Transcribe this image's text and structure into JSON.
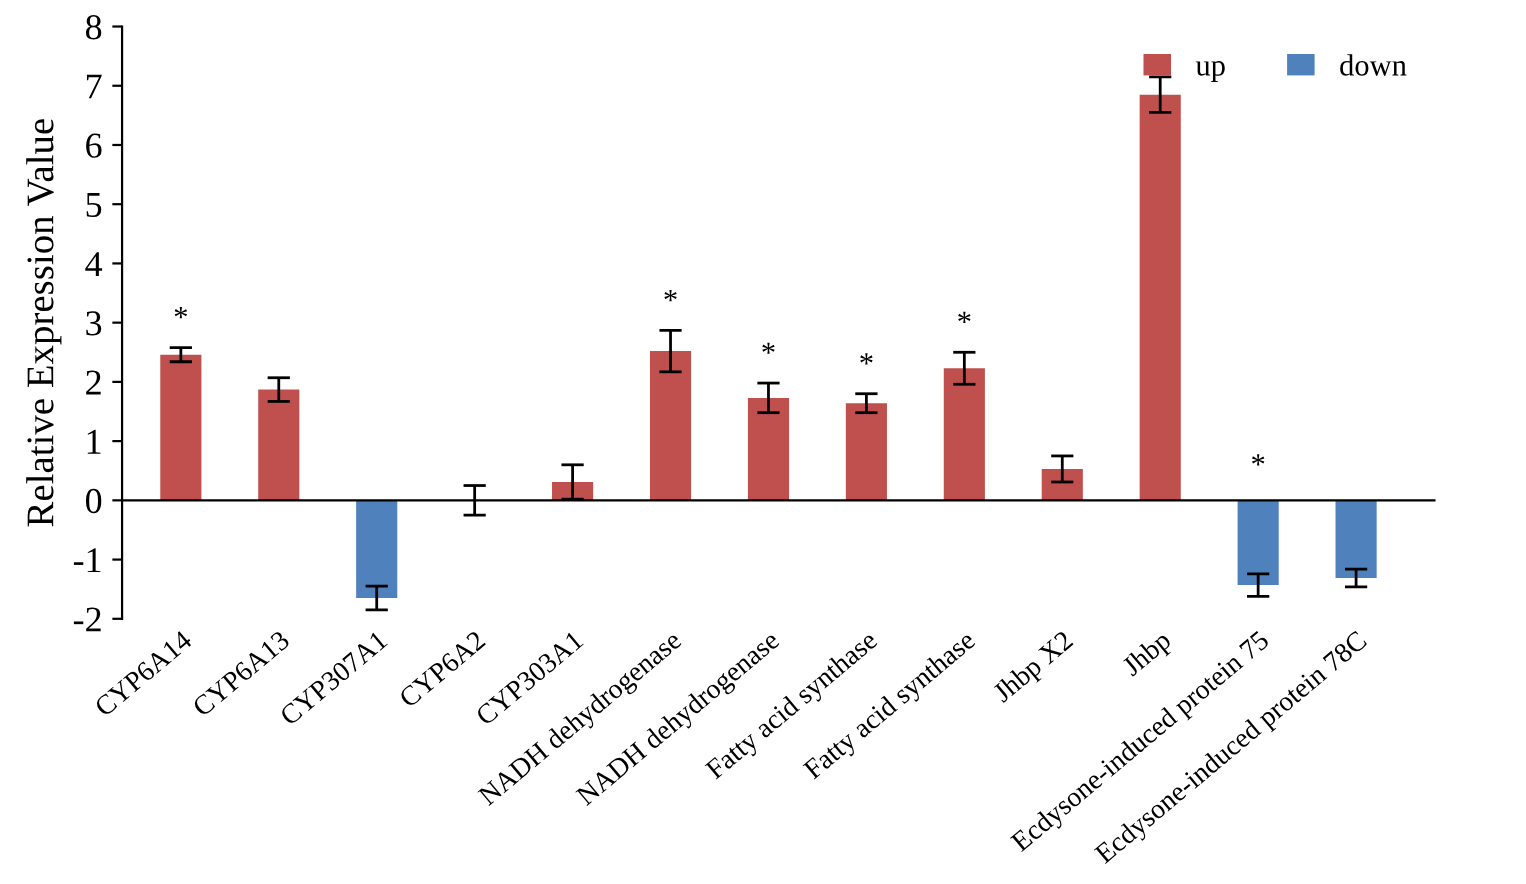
{
  "chart_data": {
    "type": "bar",
    "ylabel": "Relative Expression Value",
    "categories": [
      "CYP6A14",
      "CYP6A13",
      "CYP307A1",
      "CYP6A2",
      "CYP303A1",
      "NADH dehydrogenase",
      "NADH dehydrogenase",
      "Fatty acid synthase",
      "Fatty acid synthase",
      "Jhbp X2",
      "Jhbp",
      "Ecdysone-induced protein 75",
      "Ecdysone-induced protein 78C"
    ],
    "series": [
      {
        "name": "up",
        "color": "#c0504d",
        "values": [
          2.46,
          1.87,
          null,
          0.0,
          0.31,
          2.52,
          1.73,
          1.64,
          2.23,
          0.53,
          6.85,
          null,
          null
        ],
        "errors": [
          0.12,
          0.2,
          null,
          0.25,
          0.29,
          0.35,
          0.25,
          0.16,
          0.27,
          0.22,
          0.3,
          null,
          null
        ],
        "value_labels": [
          "*",
          null,
          null,
          null,
          null,
          "*",
          "*",
          "*",
          "*",
          null,
          null,
          null,
          null
        ]
      },
      {
        "name": "down",
        "color": "#4f81bd",
        "values": [
          null,
          null,
          -1.65,
          null,
          null,
          null,
          null,
          null,
          null,
          null,
          null,
          -1.43,
          -1.31
        ],
        "errors": [
          null,
          null,
          0.2,
          null,
          null,
          null,
          null,
          null,
          null,
          null,
          null,
          0.19,
          0.15
        ],
        "value_labels": [
          null,
          null,
          null,
          null,
          null,
          null,
          null,
          null,
          null,
          null,
          null,
          "*",
          null
        ]
      }
    ],
    "ylim": [
      -2,
      8
    ],
    "yticks": [
      -2,
      -1,
      0,
      1,
      2,
      3,
      4,
      5,
      6,
      7,
      8
    ],
    "legend": "top right"
  }
}
